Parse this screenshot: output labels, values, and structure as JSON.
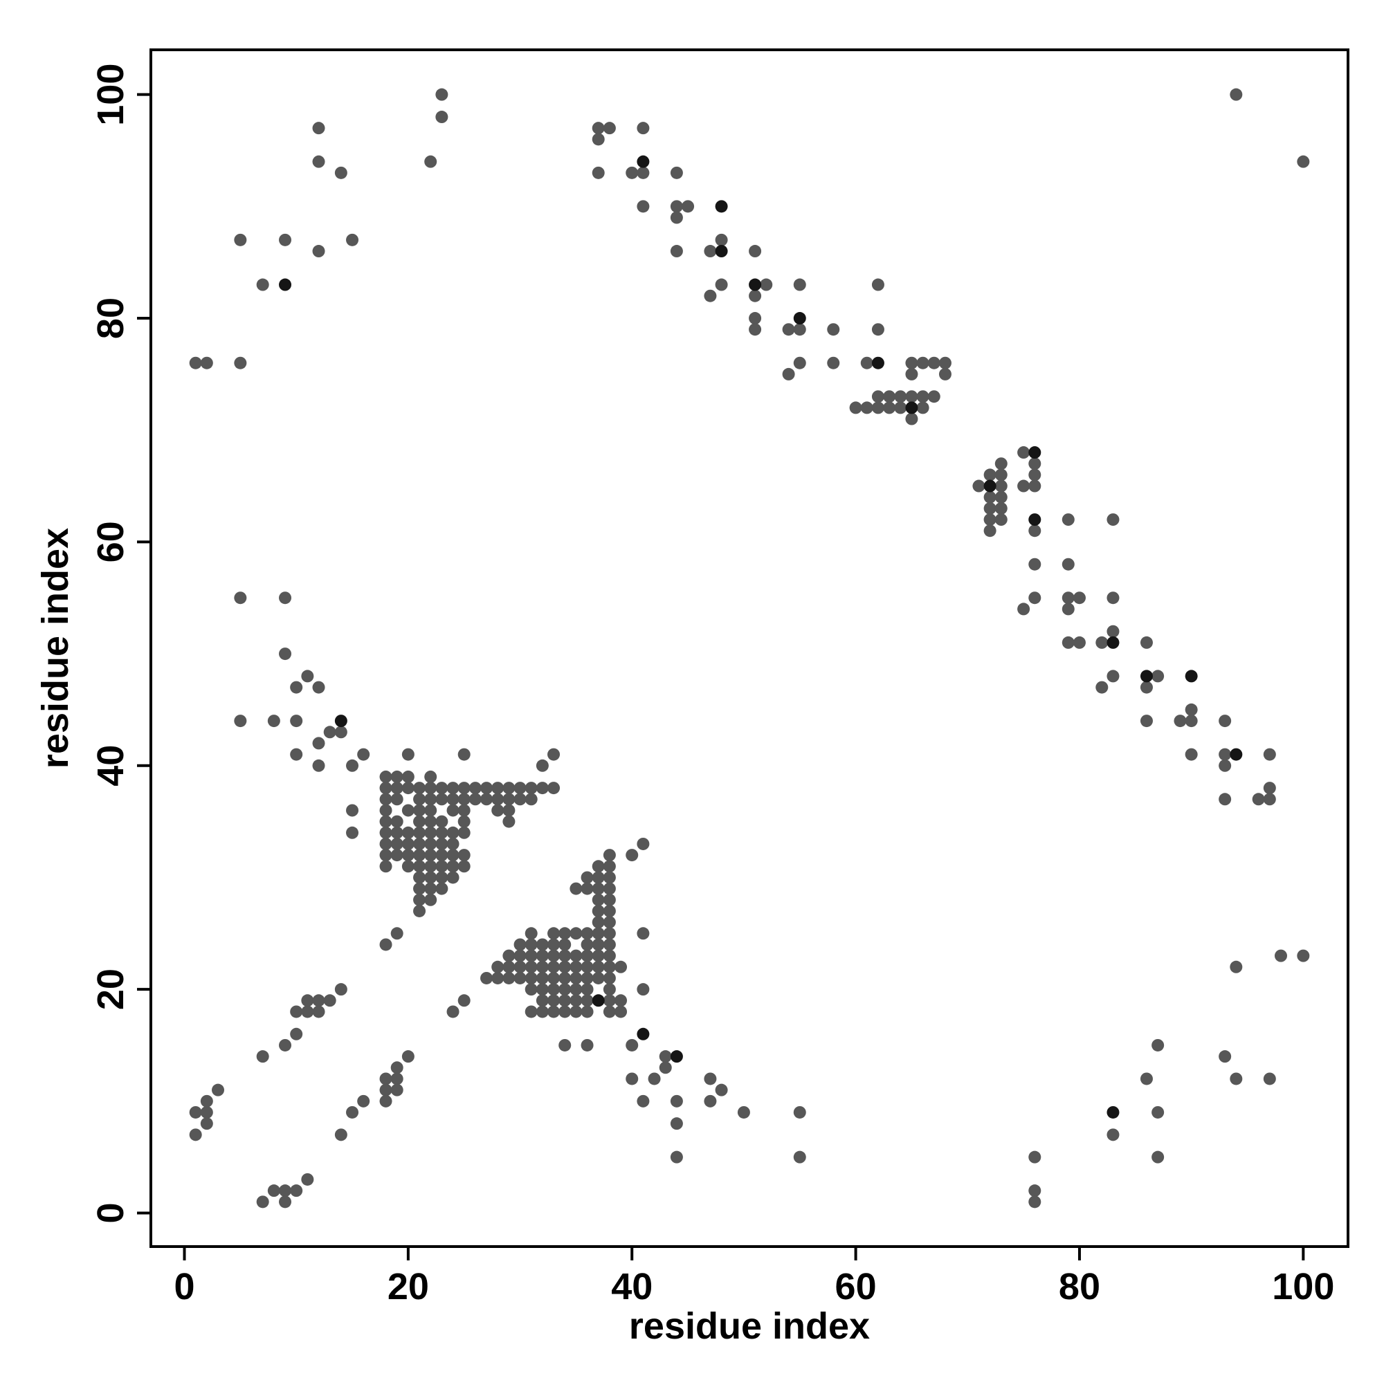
{
  "chart_data": {
    "type": "scatter",
    "x_label": "residue index",
    "y_label": "residue index",
    "xlim": [
      -3,
      104
    ],
    "ylim": [
      -3,
      104
    ],
    "xticks": [
      0,
      20,
      40,
      60,
      80,
      100
    ],
    "yticks": [
      0,
      20,
      40,
      60,
      80,
      100
    ],
    "grid": false,
    "series": [
      {
        "color": "#575757",
        "x": [
          1,
          2,
          5,
          5,
          9,
          15,
          12,
          7,
          12,
          12,
          14,
          22,
          23,
          23,
          94,
          100,
          37,
          38,
          37,
          41,
          41,
          40,
          37,
          44,
          41,
          44,
          45,
          44,
          44,
          47,
          48,
          47,
          48,
          52,
          51,
          51,
          55,
          51,
          51,
          54,
          55,
          58,
          54,
          55,
          58,
          61,
          62,
          62,
          65,
          65,
          66,
          67,
          68,
          68,
          60,
          61,
          62,
          62,
          63,
          63,
          64,
          64,
          65,
          66,
          66,
          67,
          65,
          71,
          72,
          72,
          72,
          72,
          72,
          73,
          73,
          73,
          73,
          73,
          73,
          75,
          75,
          76,
          76,
          76,
          76,
          76,
          76,
          75,
          79,
          79,
          79,
          79,
          80,
          79,
          80,
          83,
          83,
          83,
          82,
          83,
          82,
          86,
          87,
          86,
          86,
          89,
          90,
          90,
          90,
          93,
          93,
          93,
          93,
          96,
          97,
          97,
          97,
          5,
          9,
          9,
          10,
          11,
          12,
          5,
          8,
          10,
          13,
          14,
          12,
          10,
          12,
          15,
          16,
          15,
          15,
          20,
          25,
          32,
          33,
          18,
          19,
          20,
          22,
          18,
          19,
          20,
          21,
          22,
          23,
          24,
          25,
          26,
          27,
          28,
          29,
          30,
          31,
          32,
          33,
          18,
          19,
          21,
          22,
          23,
          24,
          25,
          26,
          27,
          28,
          29,
          30,
          31,
          18,
          20,
          21,
          22,
          24,
          25,
          28,
          29,
          18,
          19,
          21,
          22,
          23,
          25,
          29,
          18,
          19,
          20,
          21,
          22,
          23,
          24,
          25,
          18,
          19,
          20,
          21,
          22,
          23,
          24,
          18,
          19,
          20,
          21,
          22,
          23,
          24,
          25,
          18,
          20,
          21,
          22,
          23,
          24,
          25,
          21,
          22,
          23,
          24,
          21,
          22,
          23,
          21,
          22,
          21,
          38,
          40,
          41,
          37,
          38,
          36,
          37,
          38,
          35,
          36,
          37,
          38,
          37,
          38,
          37,
          38,
          37,
          38,
          31,
          33,
          34,
          35,
          36,
          37,
          38,
          41,
          30,
          31,
          32,
          33,
          34,
          36,
          37,
          38,
          29,
          30,
          31,
          32,
          33,
          34,
          35,
          36,
          37,
          38,
          28,
          29,
          30,
          31,
          32,
          33,
          34,
          35,
          36,
          37,
          38,
          39,
          27,
          28,
          29,
          30,
          31,
          32,
          33,
          34,
          35,
          36,
          37,
          38,
          31,
          32,
          33,
          34,
          35,
          36,
          38,
          41,
          32,
          33,
          34,
          35,
          36,
          38,
          39,
          31,
          32,
          33,
          34,
          35,
          36,
          38,
          39,
          1,
          2,
          2,
          3,
          2,
          1,
          7,
          9,
          10,
          10,
          11,
          11,
          12,
          12,
          13,
          14,
          18,
          19,
          24,
          25,
          20,
          19,
          19,
          18,
          18,
          18,
          19,
          16,
          15,
          14,
          7,
          8,
          9,
          9,
          10,
          11,
          34,
          36,
          40,
          40,
          42,
          43,
          43,
          41,
          44,
          44,
          44,
          47,
          48,
          47,
          50,
          55,
          55,
          76,
          76,
          76,
          83,
          86,
          87,
          87,
          87,
          93,
          94,
          97,
          94,
          98,
          100
        ],
        "values": [
          76,
          76,
          76,
          87,
          87,
          87,
          86,
          83,
          97,
          94,
          93,
          94,
          100,
          98,
          100,
          94,
          97,
          97,
          96,
          97,
          93,
          93,
          93,
          93,
          90,
          90,
          90,
          89,
          86,
          86,
          87,
          82,
          83,
          83,
          82,
          86,
          83,
          80,
          79,
          79,
          79,
          79,
          75,
          76,
          76,
          76,
          79,
          83,
          76,
          75,
          76,
          76,
          76,
          75,
          72,
          72,
          72,
          73,
          73,
          72,
          73,
          72,
          73,
          73,
          72,
          73,
          71,
          65,
          66,
          64,
          63,
          62,
          61,
          67,
          66,
          65,
          64,
          63,
          62,
          68,
          65,
          67,
          66,
          65,
          61,
          58,
          55,
          54,
          62,
          58,
          55,
          54,
          55,
          51,
          51,
          62,
          55,
          52,
          51,
          48,
          47,
          51,
          48,
          47,
          44,
          44,
          44,
          45,
          41,
          44,
          41,
          40,
          37,
          37,
          37,
          38,
          41,
          55,
          55,
          50,
          47,
          48,
          47,
          44,
          44,
          44,
          43,
          43,
          42,
          41,
          40,
          40,
          41,
          36,
          34,
          41,
          41,
          40,
          41,
          39,
          39,
          39,
          39,
          38,
          38,
          38,
          38,
          38,
          38,
          38,
          38,
          38,
          38,
          38,
          38,
          38,
          38,
          38,
          38,
          37,
          37,
          37,
          37,
          37,
          37,
          37,
          37,
          37,
          37,
          37,
          37,
          37,
          36,
          36,
          36,
          36,
          36,
          36,
          36,
          36,
          35,
          35,
          35,
          35,
          35,
          35,
          35,
          34,
          34,
          34,
          34,
          34,
          34,
          34,
          34,
          33,
          33,
          33,
          33,
          33,
          33,
          33,
          32,
          32,
          32,
          32,
          32,
          32,
          32,
          32,
          31,
          31,
          31,
          31,
          31,
          31,
          31,
          30,
          30,
          30,
          30,
          29,
          29,
          29,
          28,
          28,
          27,
          32,
          32,
          33,
          31,
          31,
          30,
          30,
          30,
          29,
          29,
          29,
          29,
          28,
          28,
          27,
          27,
          26,
          26,
          25,
          25,
          25,
          25,
          25,
          25,
          25,
          25,
          24,
          24,
          24,
          24,
          24,
          24,
          24,
          24,
          23,
          23,
          23,
          23,
          23,
          23,
          23,
          23,
          23,
          23,
          22,
          22,
          22,
          22,
          22,
          22,
          22,
          22,
          22,
          22,
          22,
          22,
          21,
          21,
          21,
          21,
          21,
          21,
          21,
          21,
          21,
          21,
          21,
          21,
          20,
          20,
          20,
          20,
          20,
          20,
          20,
          20,
          19,
          19,
          19,
          19,
          19,
          19,
          19,
          18,
          18,
          18,
          18,
          18,
          18,
          18,
          18,
          9,
          9,
          10,
          11,
          8,
          7,
          14,
          15,
          16,
          18,
          18,
          19,
          19,
          18,
          19,
          20,
          24,
          25,
          18,
          19,
          14,
          13,
          12,
          12,
          11,
          10,
          11,
          10,
          9,
          7,
          1,
          2,
          2,
          1,
          2,
          3,
          15,
          15,
          15,
          12,
          12,
          13,
          14,
          10,
          10,
          8,
          5,
          12,
          11,
          10,
          9,
          9,
          5,
          5,
          2,
          1,
          7,
          12,
          15,
          9,
          5,
          14,
          12,
          12,
          22,
          23,
          23
        ]
      },
      {
        "color": "#151515",
        "x": [
          9,
          41,
          48,
          48,
          51,
          62,
          65,
          76,
          83,
          86,
          90,
          94,
          44,
          37,
          55,
          72,
          76,
          14,
          41,
          83
        ],
        "values": [
          83,
          94,
          90,
          86,
          83,
          76,
          72,
          62,
          51,
          48,
          48,
          41,
          14,
          19,
          80,
          65,
          68,
          44,
          16,
          9
        ]
      }
    ]
  }
}
